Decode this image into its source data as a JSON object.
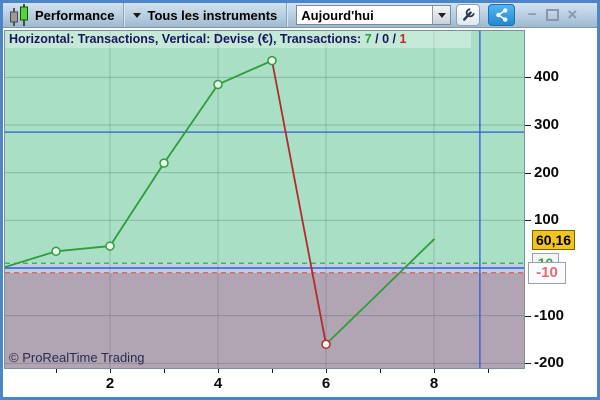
{
  "titlebar": {
    "app_label": "Performance",
    "instruments_dropdown_label": "Tous les instruments",
    "period_dropdown_value": "Aujourd'hui",
    "minimize_glyph": "−",
    "close_glyph": "×"
  },
  "icons": {
    "app": "candlestick-chart-icon",
    "instruments_arrow": "chevron-down-icon",
    "period_arrow": "chevron-down-icon",
    "settings": "wrench-icon",
    "share": "share-nodes-icon"
  },
  "header": {
    "info": "Horizontal: Transactions, Vertical: Devise (€), Transactions:",
    "wins": "7",
    "slash_a": " / ",
    "neutral": "0",
    "slash_b": " / ",
    "losses": "1"
  },
  "chart_data": {
    "type": "line",
    "title": "Performance",
    "xlabel": "Transactions",
    "ylabel": "Devise (€)",
    "x": [
      0,
      1,
      2,
      3,
      4,
      5,
      6,
      7,
      8
    ],
    "values": [
      0,
      35,
      46,
      220,
      385,
      435,
      -160,
      -50,
      60.16
    ],
    "segment_colors": [
      "#2f9e3a",
      "#2f9e3a",
      "#2f9e3a",
      "#2f9e3a",
      "#2f9e3a",
      "#b22a2a",
      "#2f9e3a",
      "#2f9e3a"
    ],
    "markers": [
      {
        "x": 1,
        "color": "#2f9e3a"
      },
      {
        "x": 2,
        "color": "#2f9e3a"
      },
      {
        "x": 3,
        "color": "#2f9e3a"
      },
      {
        "x": 4,
        "color": "#2f9e3a"
      },
      {
        "x": 5,
        "color": "#2f9e3a"
      },
      {
        "x": 6,
        "color": "#b22a2a"
      }
    ],
    "yticks": [
      400,
      300,
      200,
      100,
      -100,
      -200
    ],
    "xticks": [
      1,
      2,
      3,
      4,
      5,
      6,
      7,
      8,
      9
    ],
    "xtick_labels": [
      "2",
      "4",
      "6",
      "8"
    ],
    "xtick_label_positions": [
      2,
      4,
      6,
      8
    ],
    "ylim": [
      -210,
      497
    ],
    "xlim": [
      0.02,
      9.63
    ],
    "grid": true,
    "legend": false,
    "zero_line": 0,
    "band": {
      "low": -10,
      "high": 10,
      "low_label": "-10",
      "high_label": "10"
    },
    "current_value": 60.16,
    "current_value_label": "60,16",
    "crosshair": {
      "x": 8.85,
      "y": 285
    }
  },
  "footer": {
    "copyright": "© ProRealTime Trading"
  },
  "colors": {
    "positive_zone": "#a8dfc5",
    "negative_zone": "#b1a5b3",
    "neutral_band": "#c2cedf",
    "gain_line": "#2f9e3a",
    "loss_line": "#b22a2a",
    "band_high_line": "#2fae4a",
    "band_low_line": "#e05858",
    "crosshair": "#2e5be0",
    "current_value_bg": "#f2c41d",
    "share_button": "#2f9be0"
  }
}
